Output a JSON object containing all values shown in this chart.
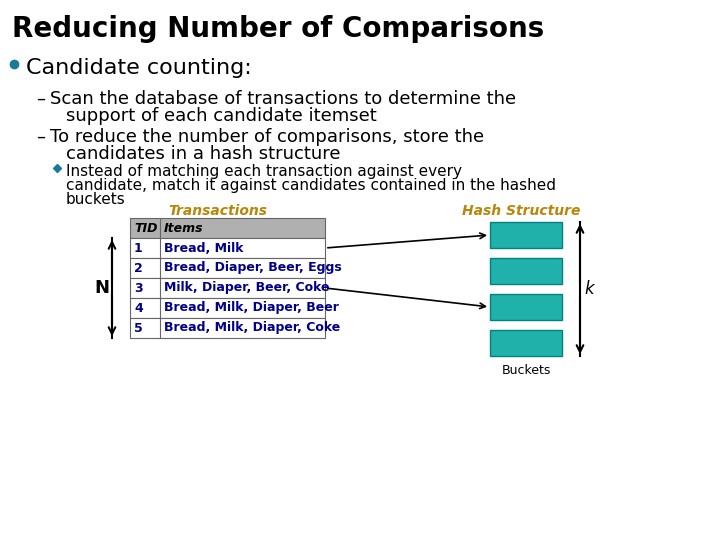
{
  "title": "Reducing Number of Comparisons",
  "bg_color": "#ffffff",
  "title_color": "#000000",
  "title_fontsize": 20,
  "bullet_color": "#1a7a9a",
  "bullet_text": "Candidate counting:",
  "bullet_fontsize": 16,
  "dash1_line1": "Scan the database of transactions to determine the",
  "dash1_line2": "support of each candidate itemset",
  "dash2_line1": "To reduce the number of comparisons, store the",
  "dash2_line2": "candidates in a hash structure",
  "diamond_line1": "Instead of matching each transaction against every",
  "diamond_line2": "candidate, match it against candidates contained in the hashed",
  "diamond_line3": "buckets",
  "transactions_label": "Transactions",
  "hash_label": "Hash Structure",
  "label_color": "#b8860b",
  "buckets_label": "Buckets",
  "table_header": [
    "TID",
    "Items"
  ],
  "table_rows": [
    [
      "1",
      "Bread, Milk"
    ],
    [
      "2",
      "Bread, Diaper, Beer, Eggs"
    ],
    [
      "3",
      "Milk, Diaper, Beer, Coke"
    ],
    [
      "4",
      "Bread, Milk, Diaper, Beer"
    ],
    [
      "5",
      "Bread, Milk, Diaper, Coke"
    ]
  ],
  "table_header_bg": "#b0b0b0",
  "table_row_bg": "#ffffff",
  "table_text_color": "#00008b",
  "hash_bucket_color": "#20b2aa",
  "n_label": "N",
  "k_label": "k",
  "body_fontsize": 13,
  "sub_fontsize": 11,
  "table_fontsize": 9
}
